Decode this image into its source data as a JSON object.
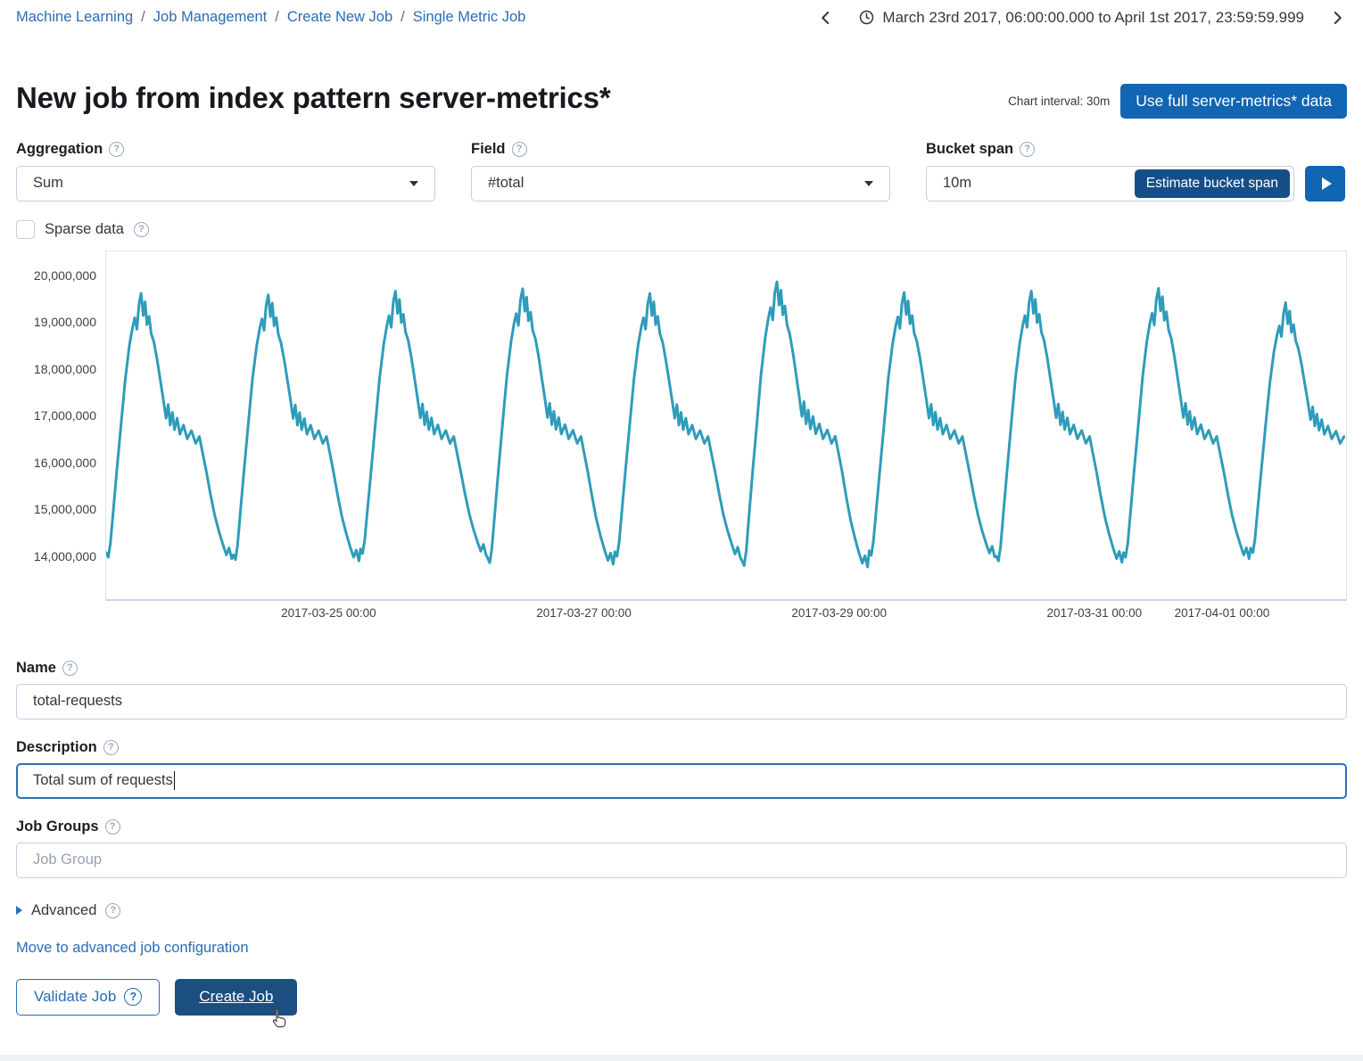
{
  "breadcrumb": {
    "separator": "/",
    "items": [
      {
        "label": "Machine Learning"
      },
      {
        "label": "Job Management"
      },
      {
        "label": "Create New Job"
      },
      {
        "label": "Single Metric Job"
      }
    ]
  },
  "time_range": {
    "label": "March 23rd 2017, 06:00:00.000 to April 1st 2017, 23:59:59.999"
  },
  "page": {
    "title": "New job from index pattern server-metrics*",
    "chart_interval_label": "Chart interval: 30m",
    "use_full_data_button": "Use full server-metrics* data"
  },
  "form": {
    "aggregation": {
      "label": "Aggregation",
      "value": "Sum"
    },
    "field": {
      "label": "Field",
      "value": "#total"
    },
    "bucket_span": {
      "label": "Bucket span",
      "value": "10m",
      "estimate_button": "Estimate bucket span"
    },
    "sparse_data": {
      "label": "Sparse data",
      "checked": false
    },
    "name": {
      "label": "Name",
      "value": "total-requests"
    },
    "description": {
      "label": "Description",
      "value": "Total sum of requests"
    },
    "job_groups": {
      "label": "Job Groups",
      "placeholder": "Job Group"
    },
    "advanced": {
      "label": "Advanced"
    },
    "move_link": "Move to advanced job configuration",
    "validate_button": "Validate Job",
    "create_button": "Create Job"
  },
  "chart_data": {
    "type": "line",
    "title": "",
    "xlabel": "",
    "ylabel": "",
    "unit": "sum of #total per 30m bucket",
    "x_range": [
      "2017-03-23 06:00",
      "2017-04-02 00:00"
    ],
    "total_hours": 234,
    "ylim_millions": [
      13.5,
      20.53
    ],
    "grid": false,
    "legend": "none",
    "line_color": "#2e9cba",
    "y_ticks": [
      {
        "value": 20,
        "label": "20,000,000"
      },
      {
        "value": 19,
        "label": "19,000,000"
      },
      {
        "value": 18,
        "label": "18,000,000"
      },
      {
        "value": 17,
        "label": "17,000,000"
      },
      {
        "value": 16,
        "label": "16,000,000"
      },
      {
        "value": 15,
        "label": "15,000,000"
      },
      {
        "value": 14,
        "label": "14,000,000"
      }
    ],
    "x_ticks": [
      {
        "hour": 42,
        "label": "2017-03-25 00:00"
      },
      {
        "hour": 90,
        "label": "2017-03-27 00:00"
      },
      {
        "hour": 138,
        "label": "2017-03-29 00:00"
      },
      {
        "hour": 186,
        "label": "2017-03-31 00:00"
      },
      {
        "hour": 210,
        "label": "2017-04-01 00:00"
      }
    ],
    "daily_profile_note": "values in millions; dt = hours after 06:00 daily trough; pattern repeats each day",
    "daily_profile": [
      [
        0.0,
        14.05
      ],
      [
        0.4,
        13.95
      ],
      [
        0.8,
        14.25
      ],
      [
        1.3,
        14.9
      ],
      [
        2.0,
        15.8
      ],
      [
        2.8,
        16.8
      ],
      [
        3.6,
        17.8
      ],
      [
        4.4,
        18.55
      ],
      [
        5.0,
        18.95
      ],
      [
        5.4,
        19.15
      ],
      [
        5.8,
        18.9
      ],
      [
        6.2,
        19.45
      ],
      [
        6.6,
        19.68
      ],
      [
        7.0,
        19.2
      ],
      [
        7.35,
        19.5
      ],
      [
        7.7,
        19.0
      ],
      [
        8.1,
        19.18
      ],
      [
        8.5,
        18.8
      ],
      [
        9.0,
        18.62
      ],
      [
        9.6,
        18.25
      ],
      [
        10.2,
        17.8
      ],
      [
        10.8,
        17.35
      ],
      [
        11.3,
        16.95
      ],
      [
        11.7,
        17.25
      ],
      [
        12.1,
        16.8
      ],
      [
        12.5,
        17.08
      ],
      [
        12.9,
        16.7
      ],
      [
        13.4,
        16.95
      ],
      [
        13.9,
        16.6
      ],
      [
        14.6,
        16.8
      ],
      [
        15.3,
        16.5
      ],
      [
        16.1,
        16.68
      ],
      [
        16.9,
        16.4
      ],
      [
        17.6,
        16.55
      ],
      [
        18.2,
        16.2
      ],
      [
        18.9,
        15.8
      ],
      [
        19.7,
        15.3
      ],
      [
        20.5,
        14.85
      ],
      [
        21.3,
        14.5
      ],
      [
        22.1,
        14.2
      ],
      [
        22.7,
        14.0
      ],
      [
        23.2,
        14.15
      ],
      [
        23.7,
        13.92
      ]
    ],
    "cycles": [
      {
        "start_hour": 0,
        "peak_adjust": -0.05,
        "trough_adjust": 0.0
      },
      {
        "start_hour": 24,
        "peak_adjust": -0.08,
        "trough_adjust": -0.05
      },
      {
        "start_hour": 48,
        "peak_adjust": 0.0,
        "trough_adjust": 0.08
      },
      {
        "start_hour": 72,
        "peak_adjust": 0.05,
        "trough_adjust": -0.12
      },
      {
        "start_hour": 96,
        "peak_adjust": -0.05,
        "trough_adjust": 0.02
      },
      {
        "start_hour": 120,
        "peak_adjust": 0.2,
        "trough_adjust": -0.18
      },
      {
        "start_hour": 144,
        "peak_adjust": -0.03,
        "trough_adjust": 0.04
      },
      {
        "start_hour": 168,
        "peak_adjust": 0.0,
        "trough_adjust": -0.08
      },
      {
        "start_hour": 192,
        "peak_adjust": 0.06,
        "trough_adjust": 0.0
      },
      {
        "start_hour": 216,
        "peak_adjust": -0.25,
        "trough_adjust": 0.1
      }
    ]
  },
  "colors": {
    "primary_link": "#2a6cb5",
    "button_blue": "#1165b2",
    "button_navy": "#1b4e81",
    "estimate_navy": "#164f87",
    "line_teal": "#2e9cba",
    "input_border": "#c3cfe0",
    "focus_border": "#2f70b8",
    "chart_border": "#dce3f2",
    "text_dark": "#343741",
    "placeholder_gray": "#98a2b2"
  }
}
